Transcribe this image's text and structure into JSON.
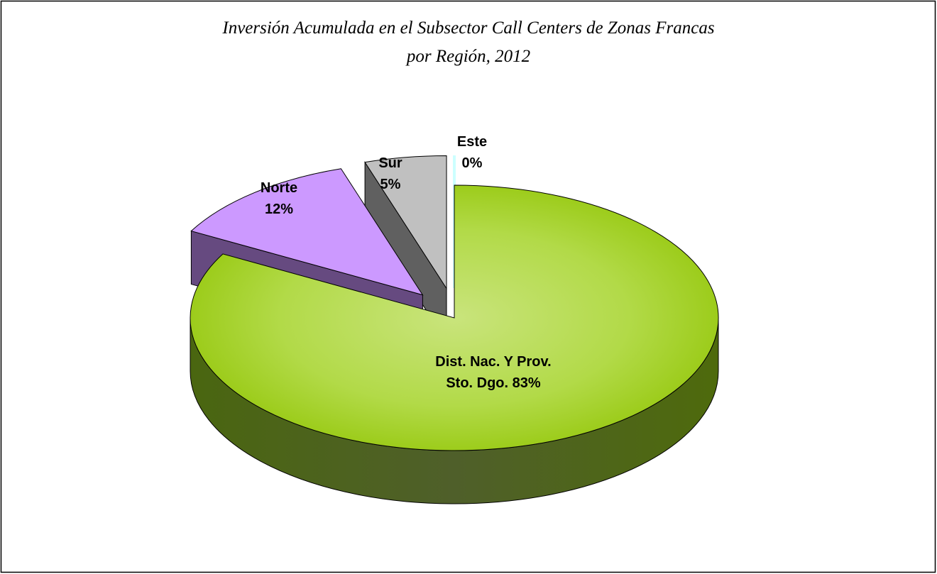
{
  "chart_data": {
    "type": "pie",
    "title": [
      "Inversión Acumulada en el Subsector Call Centers de Zonas Francas",
      "por Región, 2012"
    ],
    "categories": [
      "Dist. Nac. Y Prov. Sto. Dgo.",
      "Norte",
      "Sur",
      "Este"
    ],
    "values": [
      83,
      12,
      5,
      0
    ],
    "value_labels": [
      "83%",
      "12%",
      "5%",
      "0%"
    ],
    "colors": [
      "#a6d22a",
      "#cc99ff",
      "#c0c0c0",
      "#ccffff"
    ]
  }
}
